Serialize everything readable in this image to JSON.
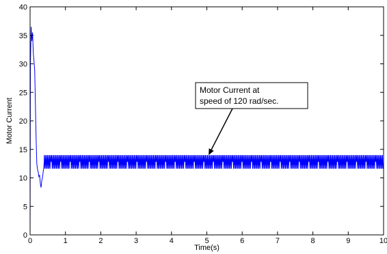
{
  "chart_data": {
    "type": "line",
    "title": "",
    "xlabel": "Time(s)",
    "ylabel": "Motor Current",
    "xlim": [
      0,
      10
    ],
    "ylim": [
      0,
      40
    ],
    "xticks": [
      0,
      1,
      2,
      3,
      4,
      5,
      6,
      7,
      8,
      9,
      10
    ],
    "yticks": [
      0,
      5,
      10,
      15,
      20,
      25,
      30,
      35,
      40
    ],
    "grid": false,
    "legend": "none",
    "line_color": "#0000ff",
    "series": [
      {
        "x": [
          0,
          0.01,
          0.03,
          0.05,
          0.07,
          0.09,
          0.11,
          0.13,
          0.15,
          0.17,
          0.19,
          0.21,
          0.23,
          0.25,
          0.27,
          0.29,
          0.31,
          0.33,
          0.35,
          0.37,
          0.39,
          0.4
        ],
        "y": [
          0,
          30,
          36.5,
          34,
          35.5,
          32,
          30.5,
          29,
          23,
          17,
          12.5,
          11.5,
          11,
          10.2,
          10.5,
          9,
          8.3,
          9.5,
          10,
          11,
          12,
          13
        ]
      }
    ],
    "steady_state": {
      "x_start": 0.4,
      "x_end": 10,
      "y_high": 14,
      "y_low": 11.6,
      "y_mid": 12.8,
      "x_period": 0.03
    },
    "annotation": {
      "lines": [
        "Motor Current at",
        "speed of 120 rad/sec."
      ],
      "arrow_target": [
        5.05,
        14
      ]
    }
  }
}
